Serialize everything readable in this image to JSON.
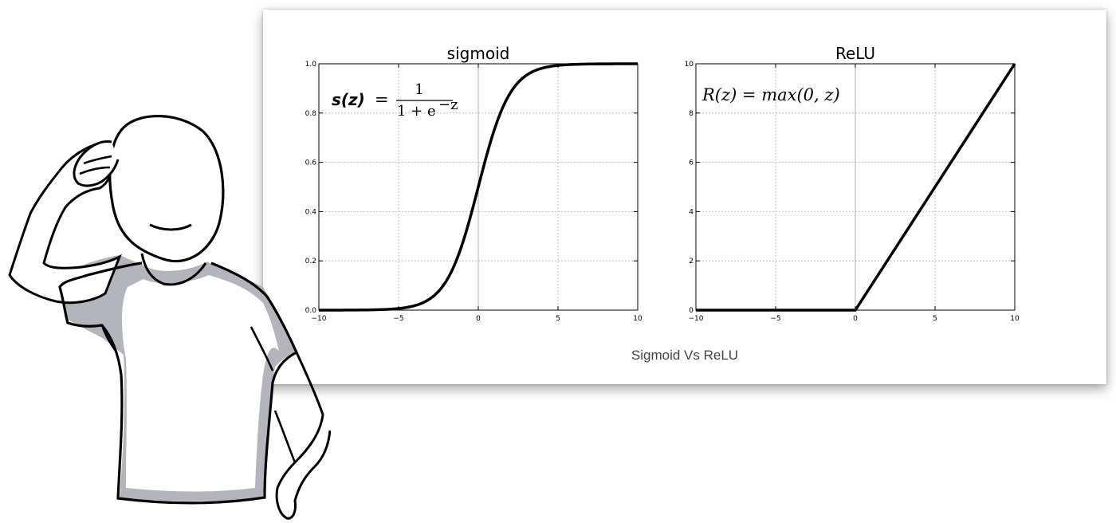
{
  "caption": "Sigmoid Vs ReLU",
  "chart_data": [
    {
      "type": "line",
      "title": "sigmoid",
      "xlabel": "",
      "ylabel": "",
      "xlim": [
        -10,
        10
      ],
      "ylim": [
        0,
        1
      ],
      "x_ticks": [
        -10,
        -5,
        0,
        5,
        10
      ],
      "x_tick_labels": [
        "−10",
        "−5",
        "0",
        "5",
        "10"
      ],
      "y_ticks": [
        0,
        0.2,
        0.4,
        0.6,
        0.8,
        1.0
      ],
      "y_tick_labels": [
        "0.0",
        "0.2",
        "0.4",
        "0.6",
        "0.8",
        "1.0"
      ],
      "grid": true,
      "formula": {
        "lhs": "s(z)",
        "equals": "=",
        "numerator": "1",
        "denominator": "1 + e",
        "exponent": "−z"
      },
      "series": [
        {
          "x": [
            -10,
            -8,
            -6,
            -5,
            -4,
            -3,
            -2,
            -1.5,
            -1,
            -0.5,
            0,
            0.5,
            1,
            1.5,
            2,
            3,
            4,
            5,
            6,
            8,
            10
          ],
          "y": [
            0.0,
            0.0003,
            0.0025,
            0.0067,
            0.018,
            0.047,
            0.119,
            0.182,
            0.269,
            0.378,
            0.5,
            0.622,
            0.731,
            0.818,
            0.881,
            0.953,
            0.982,
            0.993,
            0.998,
            0.9997,
            1.0
          ]
        }
      ]
    },
    {
      "type": "line",
      "title": "ReLU",
      "xlabel": "",
      "ylabel": "",
      "xlim": [
        -10,
        10
      ],
      "ylim": [
        0,
        10
      ],
      "x_ticks": [
        -10,
        -5,
        0,
        5,
        10
      ],
      "x_tick_labels": [
        "−10",
        "−5",
        "0",
        "5",
        "10"
      ],
      "y_ticks": [
        0,
        2,
        4,
        6,
        8,
        10
      ],
      "y_tick_labels": [
        "0",
        "2",
        "4",
        "6",
        "8",
        "10"
      ],
      "grid": true,
      "formula": {
        "text": "R(z) = max(0,  z)"
      },
      "series": [
        {
          "x": [
            -10,
            0,
            10
          ],
          "y": [
            0,
            0,
            10
          ]
        }
      ]
    }
  ],
  "colors": {
    "line": "#000000",
    "grid": "#b0b0b0",
    "shirt_sleeve": "#b4b4bc",
    "card_shadow": "#888888"
  },
  "illustration": {
    "description_icon": "confused-person-scratching-head-icon"
  }
}
